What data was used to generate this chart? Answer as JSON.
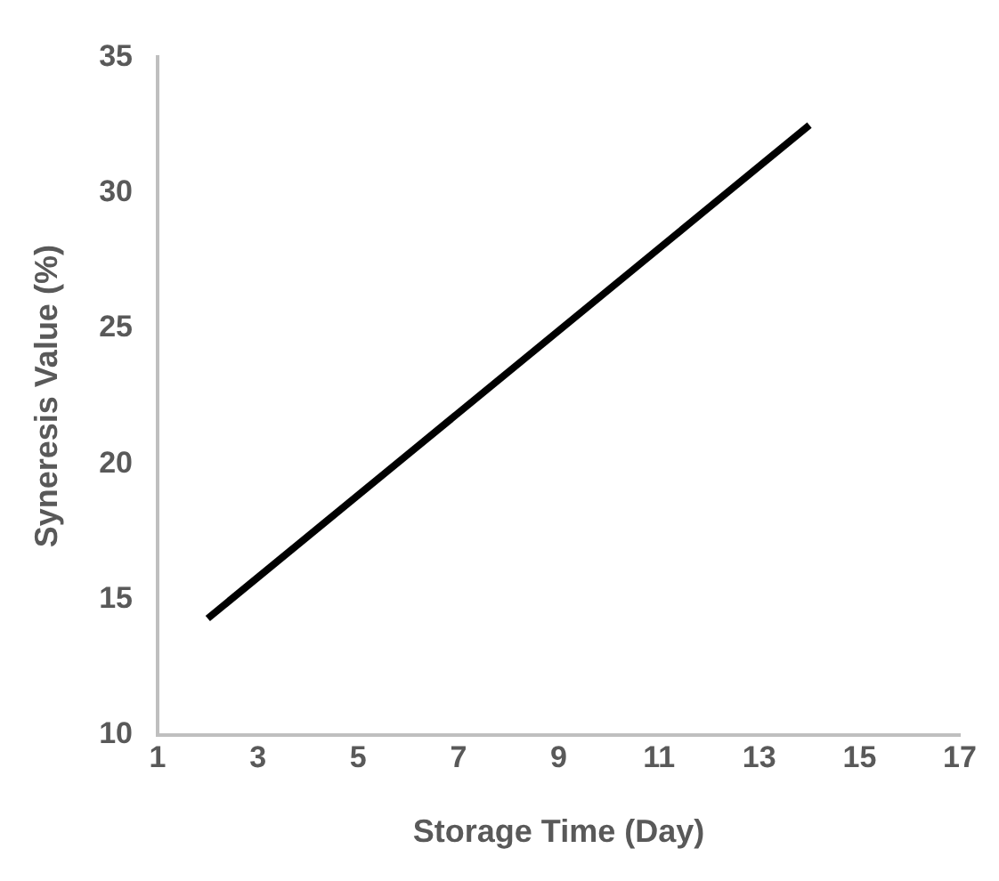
{
  "chart_data": {
    "type": "line",
    "xlabel": "Storage Time (Day)",
    "ylabel": "Syneresis Value (%)",
    "x": [
      2,
      14
    ],
    "series": [
      {
        "color": "#000000",
        "values": [
          14.3,
          32.5
        ]
      }
    ],
    "xlim": [
      1,
      17
    ],
    "xticks": [
      1,
      3,
      5,
      7,
      9,
      11,
      13,
      15,
      17
    ],
    "ylim": [
      10,
      35
    ],
    "yticks": [
      10,
      15,
      20,
      25,
      30,
      35
    ],
    "grid": false,
    "legend": false,
    "marker": "none",
    "line_style": "solid"
  }
}
